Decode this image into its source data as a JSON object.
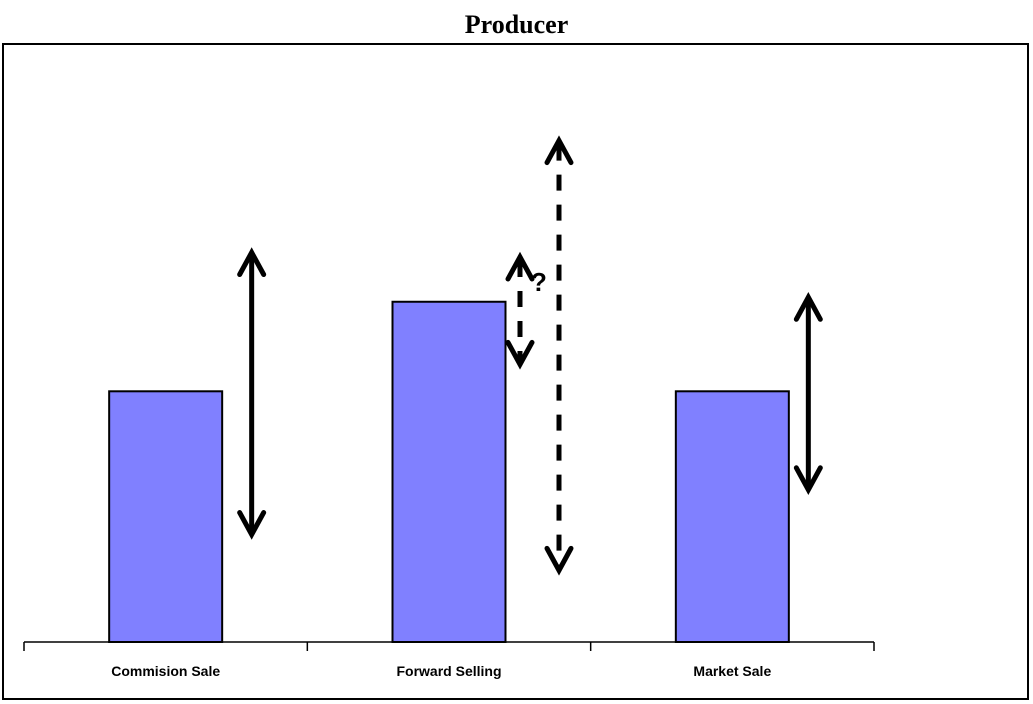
{
  "chart_data": {
    "type": "bar",
    "title": "Producer",
    "xlabel": "",
    "ylabel": "",
    "categories": [
      "Commision Sale",
      "Forward Selling",
      "Market Sale"
    ],
    "values": [
      2.8,
      3.8,
      2.8
    ],
    "ylim": [
      0,
      6.5
    ],
    "bar_color": "#8080ff",
    "grid": false,
    "annotations": {
      "question_mark": "?",
      "arrows": [
        {
          "category": "Commision Sale",
          "style": "solid",
          "from": 1.2,
          "to": 4.35
        },
        {
          "category": "Forward Selling",
          "style": "dashed",
          "from": 3.1,
          "to": 4.3
        },
        {
          "category": "Forward Selling",
          "style": "dashed",
          "from": 0.8,
          "to": 5.6
        },
        {
          "category": "Market Sale",
          "style": "solid",
          "from": 1.7,
          "to": 3.85
        }
      ]
    }
  }
}
